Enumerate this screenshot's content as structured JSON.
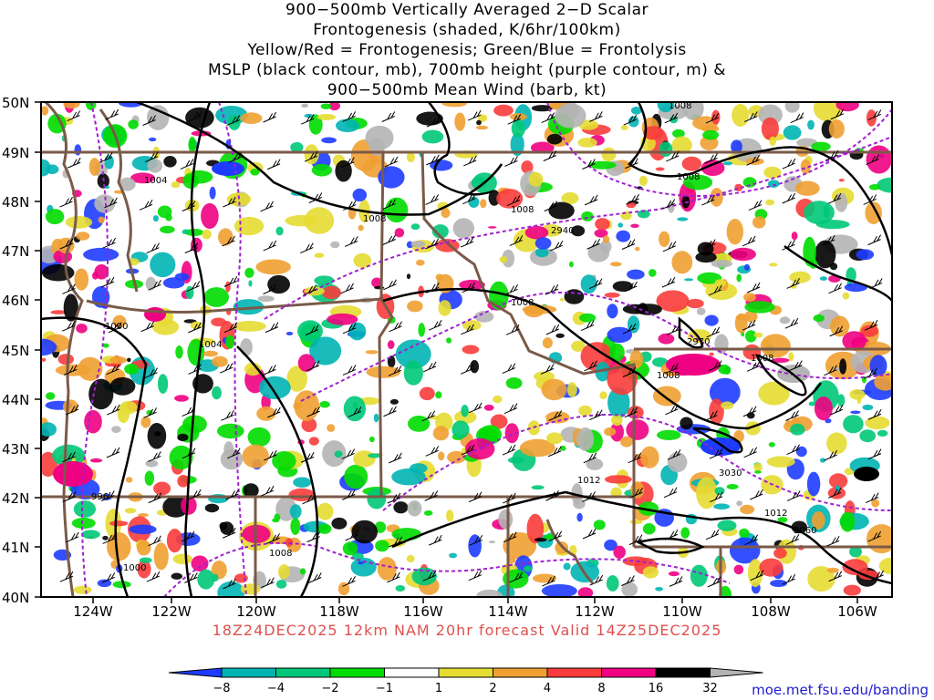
{
  "title_lines": [
    "900−500mb Vertically Averaged 2−D Scalar",
    "Frontogenesis (shaded, K/6hr/100km)",
    "Yellow/Red = Frontogenesis;  Green/Blue = Frontolysis",
    "MSLP (black contour, mb), 700mb height (purple contour, m) &",
    "900−500mb Mean Wind (barb, kt)"
  ],
  "valid_text": "18Z24DEC2025  12km NAM  20hr forecast  Valid  14Z25DEC2025",
  "credit": "moe.met.fsu.edu/banding",
  "map": {
    "lat_ticks": [
      "50N",
      "49N",
      "48N",
      "47N",
      "46N",
      "45N",
      "44N",
      "43N",
      "42N",
      "41N",
      "40N"
    ],
    "lon_ticks": [
      "124W",
      "122W",
      "120W",
      "118W",
      "116W",
      "114W",
      "112W",
      "110W",
      "108W",
      "106W"
    ],
    "mslp_labels": [
      "1008",
      "1008",
      "1008",
      "1008",
      "1008",
      "1004",
      "1000",
      "1004",
      "1008",
      "996",
      "1000",
      "1008",
      "1012",
      "1012",
      "1008"
    ],
    "height_labels": [
      "2940",
      "2970",
      "3030",
      "3060"
    ]
  },
  "colorbar": {
    "labels": [
      "−8",
      "−4",
      "−2",
      "−1",
      "1",
      "2",
      "4",
      "8",
      "16",
      "32"
    ],
    "colors": [
      "#1e3cff",
      "#00b4b4",
      "#00c878",
      "#00dc00",
      "#ffffff",
      "#e6dc32",
      "#f0a032",
      "#fa3c3c",
      "#f00082",
      "#000000",
      "#b4b4b4"
    ]
  }
}
